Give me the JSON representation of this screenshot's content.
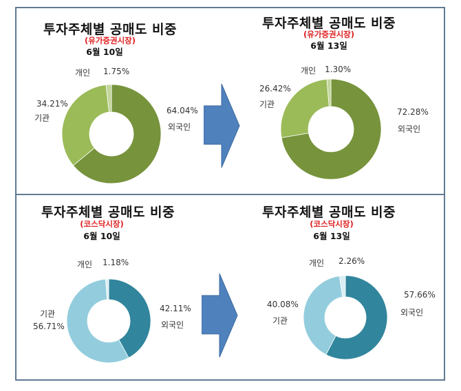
{
  "chart_data": [
    {
      "type": "pie",
      "variant": "donut",
      "title": "투자주체별 공매도 비중",
      "subtitle": "(유가증권시장)",
      "date": "6월 10일",
      "categories": [
        "외국인",
        "기관",
        "개인"
      ],
      "values": [
        64.04,
        34.21,
        1.75
      ],
      "value_labels": [
        "64.04%",
        "34.21%",
        "1.75%"
      ],
      "colors": [
        "#77933C",
        "#9BBB59",
        "#C3D69B"
      ],
      "legend": "none (data labels)"
    },
    {
      "type": "pie",
      "variant": "donut",
      "title": "투자주체별 공매도 비중",
      "subtitle": "(유가증권시장)",
      "date": "6월 13일",
      "categories": [
        "외국인",
        "기관",
        "개인"
      ],
      "values": [
        72.28,
        26.42,
        1.3
      ],
      "value_labels": [
        "72.28%",
        "26.42%",
        "1.30%"
      ],
      "colors": [
        "#77933C",
        "#9BBB59",
        "#C3D69B"
      ],
      "legend": "none (data labels)"
    },
    {
      "type": "pie",
      "variant": "donut",
      "title": "투자주체별 공매도 비중",
      "subtitle": "(코스닥시장)",
      "date": "6월 10일",
      "categories": [
        "외국인",
        "기관",
        "개인"
      ],
      "values": [
        42.11,
        56.71,
        1.18
      ],
      "value_labels": [
        "42.11%",
        "56.71%",
        "1.18%"
      ],
      "colors": [
        "#31859C",
        "#93CDDD",
        "#DAEEF3"
      ],
      "legend": "none (data labels)"
    },
    {
      "type": "pie",
      "variant": "donut",
      "title": "투자주체별 공매도 비중",
      "subtitle": "(코스닥시장)",
      "date": "6월 13일",
      "categories": [
        "외국인",
        "기관",
        "개인"
      ],
      "values": [
        57.66,
        40.08,
        2.26
      ],
      "value_labels": [
        "57.66%",
        "40.08%",
        "2.26%"
      ],
      "colors": [
        "#31859C",
        "#93CDDD",
        "#DAEEF3"
      ],
      "legend": "none (data labels)"
    }
  ],
  "panels": [
    {
      "title": "투자주체별 공매도 비중",
      "subtitle": "(유가증권시장)",
      "date": "6월 10일",
      "labels": {
        "individual_name": "개인",
        "individual_pct": "1.75%",
        "institution_name": "기관",
        "institution_pct": "34.21%",
        "foreign_name": "외국인",
        "foreign_pct": "64.04%"
      }
    },
    {
      "title": "투자주체별 공매도 비중",
      "subtitle": "(유가증권시장)",
      "date": "6월 13일",
      "labels": {
        "individual_name": "개인",
        "individual_pct": "1.30%",
        "institution_name": "기관",
        "institution_pct": "26.42%",
        "foreign_name": "외국인",
        "foreign_pct": "72.28%"
      }
    },
    {
      "title": "투자주체별 공매도 비중",
      "subtitle": "(코스닥시장)",
      "date": "6월 10일",
      "labels": {
        "individual_name": "개인",
        "individual_pct": "1.18%",
        "institution_name": "기관",
        "institution_pct": "56.71%",
        "foreign_name": "외국인",
        "foreign_pct": "42.11%"
      }
    },
    {
      "title": "투자주체별 공매도 비중",
      "subtitle": "(코스닥시장)",
      "date": "6월 13일",
      "labels": {
        "individual_name": "개인",
        "individual_pct": "2.26%",
        "institution_name": "기관",
        "institution_pct": "40.08%",
        "foreign_name": "외국인",
        "foreign_pct": "57.66%"
      }
    }
  ],
  "arrows": [
    {
      "icon": "right-arrow-icon",
      "color": "#4F81BD"
    },
    {
      "icon": "right-arrow-icon",
      "color": "#4F81BD"
    }
  ],
  "colors": {
    "frame": "#5F7A93",
    "subtitle_red": "#E02020"
  }
}
